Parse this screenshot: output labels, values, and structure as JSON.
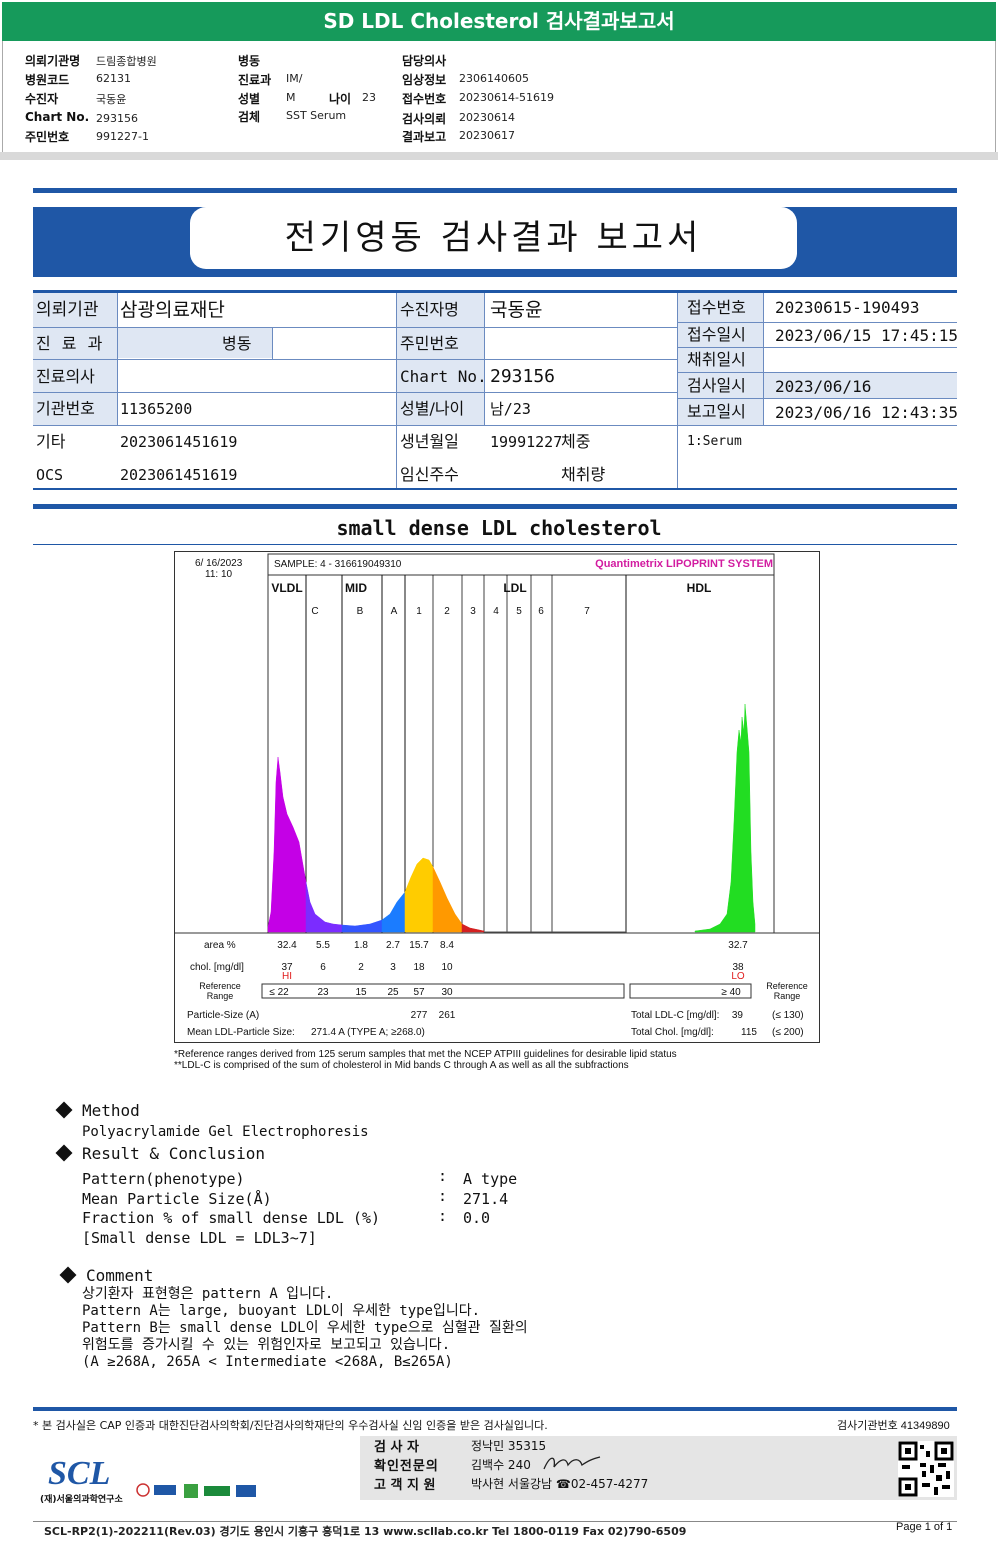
{
  "banner": {
    "title": "SD LDL Cholesterol 검사결과보고서"
  },
  "header": {
    "col1": [
      {
        "label": "의뢰기관명",
        "value": "드림종합병원"
      },
      {
        "label": "병원코드",
        "value": "62131"
      },
      {
        "label": "수진자",
        "value": "국동윤"
      },
      {
        "label": "Chart No.",
        "value": "293156"
      },
      {
        "label": "주민번호",
        "value": "991227-1"
      }
    ],
    "col2": [
      {
        "label": "병동",
        "value": ""
      },
      {
        "label": "진료과",
        "value": "IM/"
      },
      {
        "label": "성별",
        "value": "M"
      },
      {
        "label": "검체",
        "value": "SST Serum"
      }
    ],
    "age": {
      "label": "나이",
      "value": "23"
    },
    "col3": [
      {
        "label": "담당의사",
        "value": ""
      },
      {
        "label": "임상정보",
        "value": "2306140605"
      },
      {
        "label": "접수번호",
        "value": "20230614-51619"
      },
      {
        "label": "검사의뢰",
        "value": "20230614"
      },
      {
        "label": "결과보고",
        "value": "20230617"
      }
    ]
  },
  "report": {
    "title": "전기영동 검사결과 보고서"
  },
  "info": {
    "r1": {
      "l1": "의뢰기관",
      "v1": "삼광의료재단",
      "l2": "수진자명",
      "v2": "국동윤",
      "l3": "접수번호",
      "v3": "20230615-190493"
    },
    "r2": {
      "l1": "진 료 과",
      "v1": "병동",
      "l2": "주민번호",
      "v2": "",
      "l3": "접수일시",
      "v3": "2023/06/15 17:45:15"
    },
    "r3": {
      "l1": "진료의사",
      "v1": "",
      "l2": "Chart No.",
      "v2": "293156",
      "l3": "채취일시",
      "v3": ""
    },
    "r4": {
      "l1": "기관번호",
      "v1": "11365200",
      "l2": "성별/나이",
      "v2": "남/23",
      "l3": "검사일시",
      "v3": "2023/06/16"
    },
    "r5": {
      "l3": "보고일시",
      "v3": "2023/06/16 12:43:35"
    },
    "r6": {
      "l1": "기타",
      "v1": "2023061451619",
      "l2": "생년월일",
      "v2": "19991227",
      "l2b": "체중",
      "v3": "1:Serum"
    },
    "r7": {
      "l1": "OCS",
      "v1": "2023061451619",
      "l2": "임신주수",
      "l2b": "채취량"
    }
  },
  "section_title": "small dense LDL cholesterol",
  "chart_data": {
    "type": "area",
    "title": "Quantimetrix LIPOPRINT SYSTEM",
    "date": "6/ 16/2023",
    "time": "11: 10",
    "sample": "SAMPLE:    4 - 316619049310",
    "groups": [
      "VLDL",
      "MID",
      "LDL",
      "HDL"
    ],
    "bands": [
      "C",
      "B",
      "A",
      "1",
      "2",
      "3",
      "4",
      "5",
      "6",
      "7"
    ],
    "columns": [
      "VLDL",
      "C",
      "B",
      "A",
      "1",
      "2",
      "HDL"
    ],
    "area_pct": [
      32.4,
      5.5,
      1.8,
      2.7,
      15.7,
      8.4,
      32.7
    ],
    "chol_mgdl": [
      37,
      6,
      2,
      3,
      18,
      10,
      38
    ],
    "flags": {
      "VLDL": "HI",
      "HDL": "LO"
    },
    "reference_range": [
      "≤ 22",
      "23",
      "15",
      "25",
      "57",
      "30",
      "≥ 40"
    ],
    "particle_size": [
      "277",
      "261"
    ],
    "mean_ldl_particle_size": "271.4  A   (TYPE A; ≥268.0)",
    "total_ldl_c": "39",
    "total_ldl_c_ref": "(≤ 130)",
    "total_chol": "115",
    "total_chol_ref": "(≤ 200)",
    "row_labels": {
      "area": "area %",
      "chol": "chol. [mg/dl]",
      "ref": "Reference\nRange",
      "psize": "Particle-Size (A)",
      "mean": "Mean LDL-Particle Size:",
      "tldl": "Total LDL-C  [mg/dl]:",
      "tchol": "Total Chol.  [mg/dl]:",
      "ref_right": "Reference\nRange"
    },
    "colors": {
      "vldl": "#c400e6",
      "mid_c": "#7b2cff",
      "mid_b": "#3355ff",
      "mid_a": "#1b7cff",
      "ldl1": "#ffcc00",
      "ldl2": "#ff9900",
      "ldl3": "#d42020",
      "hdl": "#22dd22"
    }
  },
  "chart_foot": [
    "*Reference ranges derived from 125 serum samples that met the NCEP ATPIII guidelines for desirable lipid status",
    "**LDL-C is comprised of the sum of cholesterol in Mid bands C through A as well as all the subfractions"
  ],
  "method": {
    "heading": "Method",
    "text": "Polyacrylamide Gel Electrophoresis"
  },
  "result": {
    "heading": "Result & Conclusion",
    "rows": [
      {
        "k": "Pattern(phenotype)",
        "sep": ":",
        "v": "A type"
      },
      {
        "k": "Mean Particle Size(Å)",
        "sep": ":",
        "v": "271.4"
      },
      {
        "k": "Fraction % of small dense LDL (%)",
        "sep": ":",
        "v": "0.0"
      }
    ],
    "note": "[Small dense LDL = LDL3~7]"
  },
  "comment": {
    "heading": "Comment",
    "lines": [
      "상기환자 표현형은 pattern A 입니다.",
      "Pattern A는 large, buoyant LDL이 우세한 type입니다.",
      "Pattern B는 small dense LDL이 우세한 type으로 심혈관 질환의",
      "위험도를 증가시킬 수 있는 위험인자로 보고되고 있습니다.",
      "(A ≥268A, 265A < Intermediate <268A, B≤265A)"
    ]
  },
  "footer": {
    "cert": "* 본 검사실은 CAP 인증과 대한진단검사의학회/진단검사의학재단의 우수검사실 신임 인증을 받은 검사실입니다.",
    "inst_no": "검사기관번호  41349890",
    "staff": [
      {
        "role": "검   사   자",
        "value": "정낙민 35315"
      },
      {
        "role": "확인전문의",
        "value": "김백수 240"
      },
      {
        "role": "고 객 지 원",
        "value": "박사현 서울강남 ☎02-457-4277"
      }
    ],
    "logo": "SCL",
    "logo_sub": "(재)서울의과학연구소",
    "bottom": "SCL-RP2(1)-202211(Rev.03)  경기도 용인시 기흥구 흥덕1로 13  www.scllab.co.kr   Tel 1800-0119   Fax 02)790-6509",
    "page": "Page 1 of 1"
  }
}
